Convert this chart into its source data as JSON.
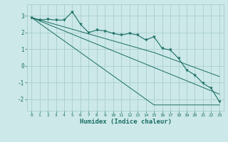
{
  "xlabel": "Humidex (Indice chaleur)",
  "bg_color": "#cce8e8",
  "grid_color": "#aacece",
  "line_color": "#1a6e64",
  "xlim": [
    -0.5,
    23.5
  ],
  "ylim": [
    -2.7,
    3.7
  ],
  "xticks": [
    0,
    1,
    2,
    3,
    4,
    5,
    6,
    7,
    8,
    9,
    10,
    11,
    12,
    13,
    14,
    15,
    16,
    17,
    18,
    19,
    20,
    21,
    22,
    23
  ],
  "yticks": [
    -2,
    -1,
    0,
    1,
    2,
    3
  ],
  "x": [
    0,
    1,
    2,
    3,
    4,
    5,
    6,
    7,
    8,
    9,
    10,
    11,
    12,
    13,
    14,
    15,
    16,
    17,
    18,
    19,
    20,
    21,
    22,
    23
  ],
  "zigzag": [
    2.9,
    2.75,
    2.8,
    2.75,
    2.75,
    3.25,
    2.5,
    2.0,
    2.15,
    2.1,
    1.95,
    1.85,
    1.95,
    1.85,
    1.55,
    1.75,
    1.05,
    0.95,
    0.45,
    -0.25,
    -0.55,
    -1.05,
    -1.35,
    -2.15
  ],
  "line1": [
    2.9,
    2.76,
    2.62,
    2.48,
    2.34,
    2.2,
    2.06,
    1.92,
    1.78,
    1.64,
    1.5,
    1.36,
    1.22,
    1.08,
    0.94,
    0.8,
    0.62,
    0.44,
    0.26,
    0.08,
    -0.1,
    -0.28,
    -0.46,
    -0.64
  ],
  "line2": [
    2.9,
    2.7,
    2.5,
    2.3,
    2.1,
    1.9,
    1.7,
    1.5,
    1.3,
    1.1,
    0.9,
    0.7,
    0.5,
    0.3,
    0.1,
    -0.1,
    -0.3,
    -0.5,
    -0.7,
    -0.9,
    -1.1,
    -1.3,
    -1.5,
    -1.7
  ],
  "line3": [
    2.9,
    2.55,
    2.2,
    1.85,
    1.5,
    1.15,
    0.8,
    0.45,
    0.1,
    -0.25,
    -0.6,
    -0.95,
    -1.3,
    -1.65,
    -2.0,
    -2.35,
    -2.35,
    -2.35,
    -2.35,
    -2.35,
    -2.35,
    -2.35,
    -2.35,
    -2.35
  ],
  "marker_size": 2.5,
  "font_family": "monospace"
}
